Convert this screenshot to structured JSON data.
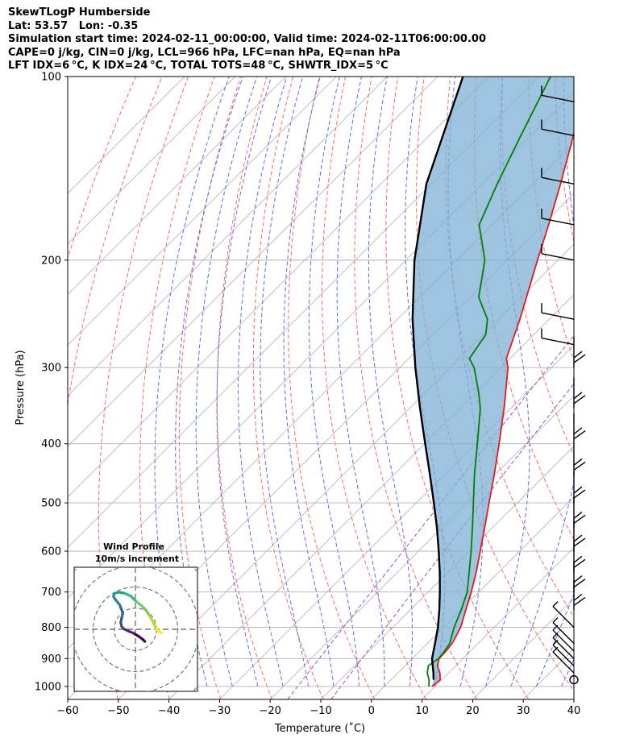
{
  "header": {
    "line1": "SkewTLogP Humberside",
    "line2": "Lat: 53.57   Lon: -0.35",
    "line3": "Simulation start time: 2024-02-11_00:00:00, Valid time: 2024-02-11T06:00:00.00",
    "line4": "CAPE=0 j/kg, CIN=0 j/kg, LCL=966 hPa, LFC=nan hPa, EQ=nan hPa",
    "line5": "LFT IDX=6 °C, K IDX=24 °C, TOTAL TOTS=48 °C, SHWTR_IDX=5 °C"
  },
  "chart_data": [
    {
      "type": "line",
      "title": "",
      "xlabel": "Temperature (˚C)",
      "ylabel": "Pressure (hPa)",
      "xlim": [
        -60,
        40
      ],
      "ylim": [
        1050,
        100
      ],
      "y_scale": "log",
      "skew": "45 degrees",
      "grid": true,
      "x_ticks": [
        "−60",
        "−50",
        "−40",
        "−30",
        "−20",
        "−10",
        "0",
        "10",
        "20",
        "30",
        "40"
      ],
      "y_ticks": [
        "100",
        "200",
        "300",
        "400",
        "500",
        "600",
        "700",
        "800",
        "900",
        "1000"
      ],
      "x_tick_values": [
        -60,
        -50,
        -40,
        -30,
        -20,
        -10,
        0,
        10,
        20,
        30,
        40
      ],
      "y_tick_values": [
        100,
        200,
        300,
        400,
        500,
        600,
        700,
        800,
        900,
        1000
      ],
      "background_lines": {
        "isotherms": "grey solid",
        "dry_adiabats": "red dashed",
        "moist_adiabats": "blue dashed",
        "mixing_ratio": "purple dashed"
      },
      "colors": {
        "temperature": "#e41a1c",
        "dewpoint": "#008000",
        "parcel": "#000000",
        "cape_shade": "#7fb0d6",
        "dry_adiabat": "#ff6666",
        "moist_adiabat": "#5b6cf0",
        "mixing_ratio": "#9b4fd0",
        "isotherm": "#b0b0b0",
        "grid": "#b0b0b0"
      },
      "series": [
        {
          "label": "temperature",
          "pressure": [
            1000,
            975,
            950,
            925,
            900,
            875,
            850,
            800,
            750,
            700,
            650,
            600,
            550,
            500,
            450,
            400,
            350,
            300,
            290,
            250,
            220,
            200,
            175,
            150,
            125,
            100
          ],
          "temperature": [
            9.4,
            9.7,
            8.3,
            6.4,
            5.3,
            5.2,
            4.9,
            3.4,
            1.0,
            -1.5,
            -4.4,
            -7.8,
            -11.5,
            -15.6,
            -20.1,
            -25.3,
            -31.3,
            -38.6,
            -40.7,
            -45.8,
            -50.5,
            -54.0,
            -58.8,
            -64.5,
            -71.5,
            -80.3
          ]
        },
        {
          "label": "dewpoint",
          "pressure": [
            1000,
            975,
            950,
            925,
            900,
            875,
            850,
            800,
            750,
            700,
            650,
            600,
            550,
            500,
            450,
            400,
            350,
            330,
            300,
            290,
            265,
            250,
            230,
            200,
            175,
            150,
            125,
            100
          ],
          "temperature": [
            8.8,
            7.5,
            5.8,
            4.6,
            5.2,
            4.9,
            4.4,
            2.1,
            0.1,
            -2.3,
            -5.8,
            -9.6,
            -13.9,
            -18.7,
            -24.0,
            -29.6,
            -36.0,
            -39.4,
            -45.3,
            -48.0,
            -49.5,
            -52.2,
            -58.3,
            -64.4,
            -72.5,
            -77.0,
            -81.9,
            -87.7
          ]
        },
        {
          "label": "parcel",
          "pressure": [
            975,
            950,
            900,
            850,
            800,
            750,
            700,
            650,
            600,
            550,
            500,
            450,
            400,
            350,
            300,
            250,
            200,
            150,
            100
          ],
          "temperature": [
            8.4,
            7.0,
            3.9,
            1.5,
            -1.1,
            -4.2,
            -7.7,
            -11.6,
            -16.0,
            -20.9,
            -26.5,
            -32.8,
            -39.9,
            -47.9,
            -56.9,
            -67.0,
            -78.3,
            -91.0,
            -105.0
          ]
        }
      ],
      "wind_barbs_pressure_hPa": [
        975,
        950,
        925,
        900,
        875,
        850,
        800,
        750,
        700,
        650,
        600,
        550,
        500,
        450,
        400,
        350,
        300,
        275,
        250,
        200,
        175,
        150,
        125,
        110
      ],
      "inset": {
        "type": "scatter",
        "title": "Wind Profile",
        "subtitle": "10m/s increment",
        "ring_step": 10,
        "colormap": "viridis",
        "hodograph_u": [
          4.5,
          3.5,
          1.5,
          -1.0,
          -3.5,
          -5.5,
          -6.5,
          -7.0,
          -6.5,
          -6.0,
          -7.5,
          -9.5,
          -10.5,
          -10.0,
          -8.0,
          -5.0,
          -2.0,
          0.5,
          3.0,
          5.0,
          7.0,
          8.5,
          10.0,
          11.0,
          12.5
        ],
        "hodograph_v": [
          -3.5,
          -2.5,
          -1.0,
          0.5,
          1.5,
          2.5,
          3.5,
          5.5,
          8.0,
          10.0,
          14.0,
          16.5,
          18.0,
          19.5,
          20.0,
          19.5,
          18.0,
          15.5,
          13.5,
          11.5,
          8.5,
          5.5,
          2.5,
          1.5,
          0.5
        ]
      }
    }
  ]
}
